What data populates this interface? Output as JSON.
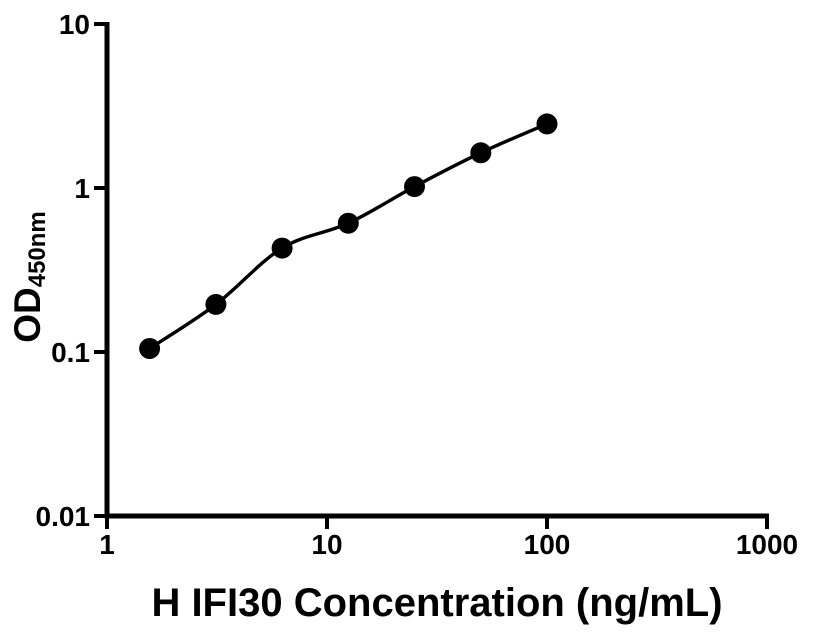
{
  "colors": {
    "ink": "#000000",
    "background": "#ffffff"
  },
  "chart_data": {
    "type": "scatter",
    "xlabel": "H IFI30 Concentration (ng/mL)",
    "ylabel_main": "OD",
    "ylabel_subscript": "450nm",
    "x_scale": "log",
    "y_scale": "log",
    "xlim": [
      1,
      1000
    ],
    "ylim": [
      0.01,
      10
    ],
    "x_tick_labels": [
      "1",
      "10",
      "100",
      "1000"
    ],
    "y_tick_labels": [
      "10",
      "1",
      "0.1",
      "0.01"
    ],
    "grid": false,
    "legend": "none",
    "marker": {
      "shape": "circle",
      "color": "#000000"
    },
    "line": {
      "color": "#000000",
      "style": "solid"
    },
    "series": [
      {
        "x_ng_per_mL": [
          1.5625,
          3.125,
          6.25,
          12.5,
          25,
          50,
          100
        ],
        "y_od450": [
          0.105,
          0.195,
          0.43,
          0.61,
          1.02,
          1.64,
          2.46
        ]
      }
    ]
  }
}
